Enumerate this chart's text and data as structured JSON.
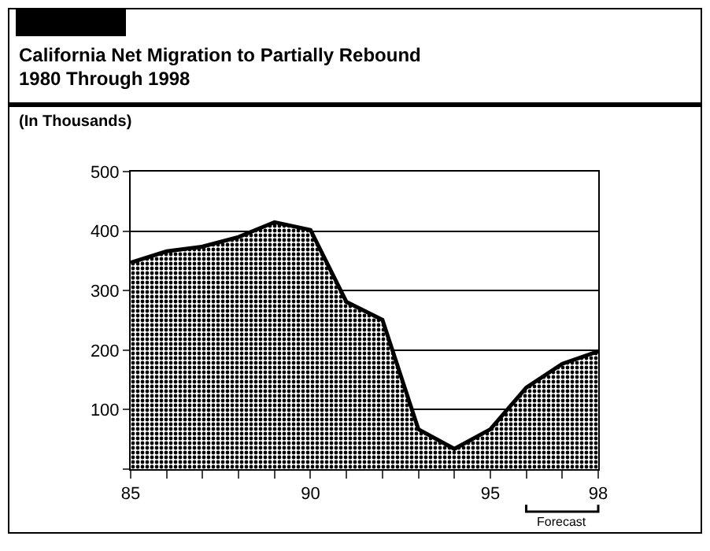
{
  "chart_data": {
    "type": "area",
    "title": "California Net Migration to Partially Rebound\n1980 Through 1998",
    "ylabel": "(In Thousands)",
    "x": [
      85,
      86,
      87,
      88,
      89,
      90,
      91,
      92,
      93,
      94,
      95,
      96,
      97,
      98
    ],
    "series": [
      {
        "color": "#000000",
        "values": [
          347,
          366,
          374,
          390,
          415,
          402,
          281,
          251,
          67,
          34,
          67,
          137,
          177,
          198
        ]
      }
    ],
    "xlim": [
      85,
      98
    ],
    "xticks": [
      85,
      {
        "value": 86,
        "label": null
      },
      {
        "value": 87,
        "label": null
      },
      {
        "value": 88,
        "label": null
      },
      {
        "value": 89,
        "label": null
      },
      90,
      {
        "value": 91,
        "label": null
      },
      {
        "value": 92,
        "label": null
      },
      {
        "value": 93,
        "label": null
      },
      {
        "value": 94,
        "label": null
      },
      95,
      {
        "value": 96,
        "label": null
      },
      {
        "value": 97,
        "label": null
      },
      98
    ],
    "ylim": [
      0,
      500
    ],
    "yticks": [
      {
        "value": 0,
        "label": null
      },
      100,
      200,
      300,
      400,
      500
    ],
    "grid": "y",
    "annotations": [
      "Forecast"
    ]
  }
}
